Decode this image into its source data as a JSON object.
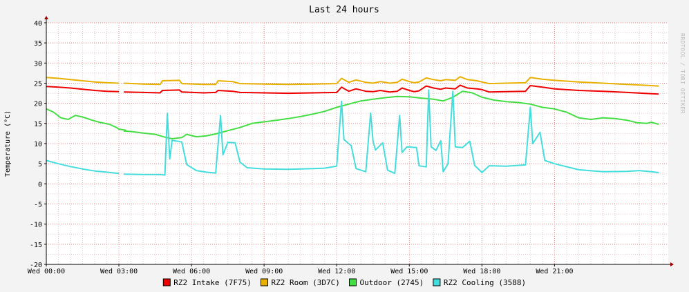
{
  "chart_data": {
    "type": "line",
    "title": "Last 24 hours",
    "ylabel": "Temperature (°C)",
    "xlabel": "",
    "watermark": "RRDTOOL / TOBI OETIKER",
    "ylim": [
      -20,
      40
    ],
    "xlim": [
      0,
      25.7
    ],
    "y_ticks": [
      40,
      35,
      30,
      25,
      20,
      15,
      10,
      5,
      0,
      -5,
      -10,
      -15,
      -20
    ],
    "x_ticks": [
      {
        "hour": 0,
        "label": "Wed 00:00"
      },
      {
        "hour": 3,
        "label": "Wed 03:00"
      },
      {
        "hour": 6,
        "label": "Wed 06:00"
      },
      {
        "hour": 9,
        "label": "Wed 09:00"
      },
      {
        "hour": 12,
        "label": "Wed 12:00"
      },
      {
        "hour": 15,
        "label": "Wed 15:00"
      },
      {
        "hour": 18,
        "label": "Wed 18:00"
      },
      {
        "hour": 21,
        "label": "Wed 21:00"
      }
    ],
    "grid": true,
    "legend_position": "bottom",
    "colors": {
      "background": "#f3f3f3",
      "canvas": "#ffffff",
      "grid_minor": "#e0c8c8",
      "grid_major": "#e08080",
      "axis": "#000000",
      "arrow": "#a00000"
    },
    "series": [
      {
        "name": "RZ2 Intake (7F75)",
        "color": "#ee0000",
        "points": [
          [
            0,
            24.2
          ],
          [
            0.5,
            24.0
          ],
          [
            1,
            23.8
          ],
          [
            1.5,
            23.5
          ],
          [
            2,
            23.2
          ],
          [
            2.5,
            23.0
          ],
          [
            3,
            22.9
          ],
          null,
          [
            3.2,
            22.8
          ],
          [
            4,
            22.7
          ],
          [
            4.7,
            22.6
          ],
          [
            4.8,
            23.2
          ],
          [
            5.5,
            23.3
          ],
          [
            5.6,
            22.8
          ],
          [
            6.5,
            22.6
          ],
          [
            7.0,
            22.7
          ],
          [
            7.1,
            23.2
          ],
          [
            7.7,
            23.0
          ],
          [
            8.0,
            22.7
          ],
          [
            9,
            22.6
          ],
          [
            10,
            22.5
          ],
          [
            11,
            22.6
          ],
          [
            12,
            22.7
          ],
          [
            12.2,
            24.0
          ],
          [
            12.5,
            23.0
          ],
          [
            12.8,
            23.6
          ],
          [
            13.2,
            23.0
          ],
          [
            13.5,
            22.9
          ],
          [
            13.8,
            23.2
          ],
          [
            14.2,
            22.8
          ],
          [
            14.5,
            23.0
          ],
          [
            14.7,
            23.8
          ],
          [
            15.0,
            23.2
          ],
          [
            15.2,
            22.9
          ],
          [
            15.4,
            23.1
          ],
          [
            15.7,
            24.3
          ],
          [
            16.0,
            23.8
          ],
          [
            16.3,
            23.5
          ],
          [
            16.5,
            23.8
          ],
          [
            16.9,
            23.6
          ],
          [
            17.1,
            24.5
          ],
          [
            17.4,
            23.8
          ],
          [
            17.8,
            23.6
          ],
          [
            18.0,
            23.4
          ],
          [
            18.3,
            22.8
          ],
          [
            19,
            22.9
          ],
          [
            19.8,
            23.0
          ],
          [
            20.0,
            24.4
          ],
          [
            20.5,
            24.0
          ],
          [
            21,
            23.6
          ],
          [
            22,
            23.2
          ],
          [
            23,
            23.0
          ],
          [
            24,
            22.7
          ],
          [
            25,
            22.4
          ],
          [
            25.3,
            22.3
          ]
        ]
      },
      {
        "name": "RZ2 Room (3D7C)",
        "color": "#e8b000",
        "points": [
          [
            0,
            26.4
          ],
          [
            0.5,
            26.2
          ],
          [
            1,
            25.9
          ],
          [
            1.5,
            25.6
          ],
          [
            2,
            25.3
          ],
          [
            2.5,
            25.1
          ],
          [
            3,
            25.0
          ],
          null,
          [
            3.2,
            25.0
          ],
          [
            4,
            24.8
          ],
          [
            4.7,
            24.7
          ],
          [
            4.8,
            25.6
          ],
          [
            5.5,
            25.7
          ],
          [
            5.6,
            24.9
          ],
          [
            6.5,
            24.7
          ],
          [
            7.0,
            24.7
          ],
          [
            7.1,
            25.6
          ],
          [
            7.7,
            25.4
          ],
          [
            8.0,
            24.9
          ],
          [
            9,
            24.8
          ],
          [
            10,
            24.7
          ],
          [
            11,
            24.8
          ],
          [
            12,
            24.9
          ],
          [
            12.2,
            26.2
          ],
          [
            12.5,
            25.2
          ],
          [
            12.8,
            25.8
          ],
          [
            13.2,
            25.2
          ],
          [
            13.5,
            25.0
          ],
          [
            13.8,
            25.4
          ],
          [
            14.2,
            25.0
          ],
          [
            14.5,
            25.2
          ],
          [
            14.7,
            26.0
          ],
          [
            15.0,
            25.4
          ],
          [
            15.2,
            25.1
          ],
          [
            15.4,
            25.3
          ],
          [
            15.7,
            26.3
          ],
          [
            16.0,
            25.9
          ],
          [
            16.3,
            25.6
          ],
          [
            16.5,
            25.9
          ],
          [
            16.9,
            25.7
          ],
          [
            17.1,
            26.6
          ],
          [
            17.4,
            25.9
          ],
          [
            17.8,
            25.6
          ],
          [
            18.0,
            25.3
          ],
          [
            18.3,
            24.9
          ],
          [
            19,
            25.0
          ],
          [
            19.8,
            25.1
          ],
          [
            20.0,
            26.4
          ],
          [
            20.5,
            26.0
          ],
          [
            21,
            25.7
          ],
          [
            22,
            25.3
          ],
          [
            23,
            25.0
          ],
          [
            24,
            24.7
          ],
          [
            25,
            24.4
          ],
          [
            25.3,
            24.3
          ]
        ]
      },
      {
        "name": "Outdoor (2745)",
        "color": "#44dd44",
        "points": [
          [
            0,
            18.6
          ],
          [
            0.3,
            17.8
          ],
          [
            0.6,
            16.4
          ],
          [
            0.9,
            16.0
          ],
          [
            1.2,
            17.0
          ],
          [
            1.5,
            16.6
          ],
          [
            1.9,
            15.8
          ],
          [
            2.2,
            15.3
          ],
          [
            2.6,
            14.8
          ],
          [
            2.9,
            14.0
          ],
          [
            3.0,
            13.6
          ],
          [
            3.3,
            13.3
          ],
          null,
          [
            3.2,
            13.1
          ],
          [
            3.5,
            13.0
          ],
          [
            4,
            12.6
          ],
          [
            4.5,
            12.3
          ],
          [
            4.9,
            11.6
          ],
          [
            5.2,
            11.2
          ],
          [
            5.6,
            11.5
          ],
          [
            5.8,
            12.3
          ],
          [
            6.2,
            11.7
          ],
          [
            6.6,
            11.9
          ],
          [
            7.0,
            12.4
          ],
          [
            7.5,
            13.2
          ],
          [
            8.0,
            14.0
          ],
          [
            8.5,
            15.0
          ],
          [
            9,
            15.4
          ],
          [
            9.5,
            15.8
          ],
          [
            10,
            16.2
          ],
          [
            10.5,
            16.7
          ],
          [
            11,
            17.3
          ],
          [
            11.5,
            18.0
          ],
          [
            12,
            19.0
          ],
          [
            12.5,
            19.8
          ],
          [
            13,
            20.6
          ],
          [
            13.5,
            21.0
          ],
          [
            14,
            21.4
          ],
          [
            14.5,
            21.7
          ],
          [
            15,
            21.6
          ],
          [
            15.5,
            21.3
          ],
          [
            16,
            21.0
          ],
          [
            16.4,
            20.6
          ],
          [
            16.8,
            21.5
          ],
          [
            17.2,
            23.0
          ],
          [
            17.6,
            22.6
          ],
          [
            18.0,
            21.5
          ],
          [
            18.5,
            20.8
          ],
          [
            19,
            20.4
          ],
          [
            19.5,
            20.2
          ],
          [
            20,
            19.8
          ],
          [
            20.5,
            19.0
          ],
          [
            21,
            18.6
          ],
          [
            21.5,
            17.8
          ],
          [
            22,
            16.4
          ],
          [
            22.5,
            16.0
          ],
          [
            23,
            16.4
          ],
          [
            23.5,
            16.2
          ],
          [
            24,
            15.8
          ],
          [
            24.4,
            15.2
          ],
          [
            24.8,
            15.0
          ],
          [
            25.0,
            15.3
          ],
          [
            25.3,
            14.8
          ]
        ]
      },
      {
        "name": "RZ2 Cooling (3588)",
        "color": "#44dddd",
        "points": [
          [
            0,
            5.8
          ],
          [
            0.5,
            5.0
          ],
          [
            1,
            4.3
          ],
          [
            1.5,
            3.7
          ],
          [
            2,
            3.2
          ],
          [
            2.5,
            2.9
          ],
          [
            3,
            2.6
          ],
          null,
          [
            3.2,
            2.4
          ],
          [
            4,
            2.3
          ],
          [
            4.7,
            2.3
          ],
          [
            4.9,
            2.2
          ],
          [
            5.0,
            17.5
          ],
          [
            5.1,
            6.2
          ],
          [
            5.2,
            10.8
          ],
          [
            5.6,
            10.4
          ],
          [
            5.8,
            4.8
          ],
          [
            6.2,
            3.3
          ],
          [
            6.6,
            2.9
          ],
          [
            7.0,
            2.7
          ],
          [
            7.2,
            17.0
          ],
          [
            7.3,
            7.2
          ],
          [
            7.5,
            10.3
          ],
          [
            7.8,
            10.2
          ],
          [
            8.0,
            5.4
          ],
          [
            8.3,
            4.0
          ],
          [
            9,
            3.7
          ],
          [
            10,
            3.6
          ],
          [
            11,
            3.8
          ],
          [
            11.5,
            3.9
          ],
          [
            12,
            4.4
          ],
          [
            12.2,
            20.5
          ],
          [
            12.3,
            11.0
          ],
          [
            12.6,
            9.5
          ],
          [
            12.8,
            3.8
          ],
          [
            13.2,
            3.0
          ],
          [
            13.4,
            17.6
          ],
          [
            13.5,
            10.6
          ],
          [
            13.6,
            8.4
          ],
          [
            13.9,
            10.2
          ],
          [
            14.1,
            3.4
          ],
          [
            14.4,
            2.6
          ],
          [
            14.6,
            17.0
          ],
          [
            14.7,
            7.8
          ],
          [
            14.9,
            9.2
          ],
          [
            15.3,
            9.0
          ],
          [
            15.4,
            4.5
          ],
          [
            15.7,
            4.2
          ],
          [
            15.8,
            23.3
          ],
          [
            15.9,
            9.2
          ],
          [
            16.1,
            8.3
          ],
          [
            16.3,
            10.7
          ],
          [
            16.4,
            3.0
          ],
          [
            16.6,
            5.0
          ],
          [
            16.8,
            23.0
          ],
          [
            16.9,
            9.2
          ],
          [
            17.2,
            9.0
          ],
          [
            17.5,
            10.6
          ],
          [
            17.7,
            4.6
          ],
          [
            18.0,
            2.8
          ],
          [
            18.3,
            4.5
          ],
          [
            19,
            4.4
          ],
          [
            19.8,
            4.7
          ],
          [
            20.0,
            19.0
          ],
          [
            20.1,
            10.0
          ],
          [
            20.4,
            12.8
          ],
          [
            20.6,
            5.8
          ],
          [
            21,
            5.0
          ],
          [
            22,
            3.5
          ],
          [
            23,
            3.0
          ],
          [
            24,
            3.1
          ],
          [
            24.5,
            3.3
          ],
          [
            25,
            3.0
          ],
          [
            25.3,
            2.8
          ]
        ]
      }
    ]
  }
}
